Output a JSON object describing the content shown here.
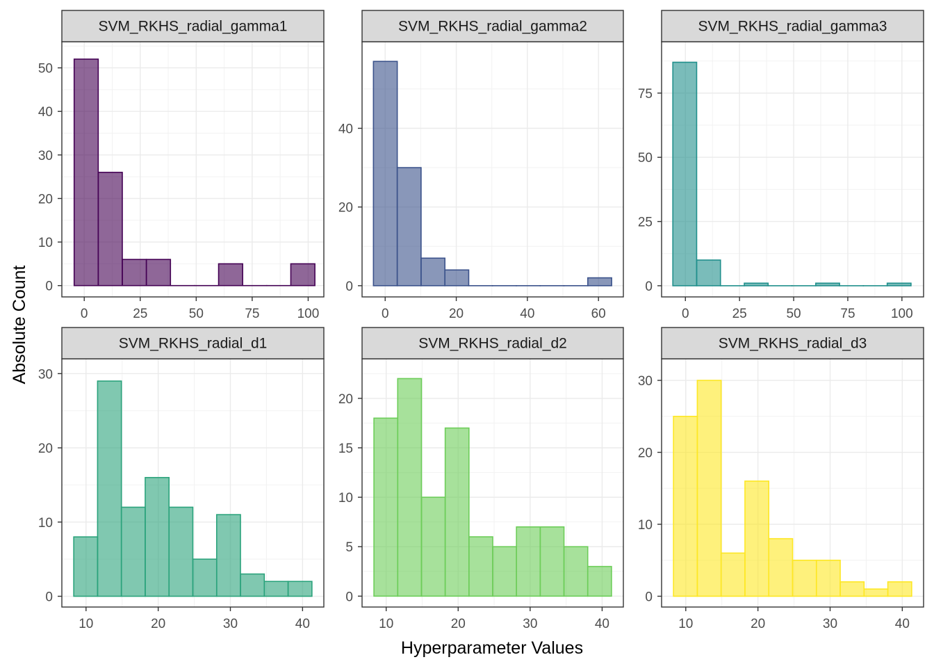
{
  "xlabel": "Hyperparameter Values",
  "ylabel": "Absolute Count",
  "chart_data": [
    {
      "type": "bar",
      "title": "SVM_RKHS_radial_gamma1",
      "color": "#440154",
      "bins": [
        {
          "x0": -4.5,
          "x1": 6.25,
          "count": 52
        },
        {
          "x0": 6.25,
          "x1": 17,
          "count": 26
        },
        {
          "x0": 17,
          "x1": 27.75,
          "count": 6
        },
        {
          "x0": 27.75,
          "x1": 38.5,
          "count": 6
        },
        {
          "x0": 38.5,
          "x1": 49.25,
          "count": 0
        },
        {
          "x0": 49.25,
          "x1": 60,
          "count": 0
        },
        {
          "x0": 60,
          "x1": 70.75,
          "count": 5
        },
        {
          "x0": 70.75,
          "x1": 81.5,
          "count": 0
        },
        {
          "x0": 81.5,
          "x1": 92.25,
          "count": 0
        },
        {
          "x0": 92.25,
          "x1": 103,
          "count": 5
        }
      ],
      "xlim": [
        -10,
        107
      ],
      "ylim": [
        -2.6,
        56
      ],
      "xticks": [
        0,
        25,
        50,
        75,
        100
      ],
      "yticks": [
        0,
        10,
        20,
        30,
        40,
        50
      ]
    },
    {
      "type": "bar",
      "title": "SVM_RKHS_radial_gamma2",
      "color": "#3B528B",
      "bins": [
        {
          "x0": -3.3,
          "x1": 3.4,
          "count": 57
        },
        {
          "x0": 3.4,
          "x1": 10.1,
          "count": 30
        },
        {
          "x0": 10.1,
          "x1": 16.8,
          "count": 7
        },
        {
          "x0": 16.8,
          "x1": 23.5,
          "count": 4
        },
        {
          "x0": 23.5,
          "x1": 30.2,
          "count": 0
        },
        {
          "x0": 30.2,
          "x1": 36.9,
          "count": 0
        },
        {
          "x0": 36.9,
          "x1": 43.6,
          "count": 0
        },
        {
          "x0": 43.6,
          "x1": 50.3,
          "count": 0
        },
        {
          "x0": 50.3,
          "x1": 57,
          "count": 0
        },
        {
          "x0": 57,
          "x1": 63.7,
          "count": 2
        }
      ],
      "xlim": [
        -6.5,
        67
      ],
      "ylim": [
        -2.85,
        62
      ],
      "xticks": [
        0,
        20,
        40,
        60
      ],
      "yticks": [
        0,
        20,
        40
      ]
    },
    {
      "type": "bar",
      "title": "SVM_RKHS_radial_gamma3",
      "color": "#21908C",
      "bins": [
        {
          "x0": -5.8,
          "x1": 5.2,
          "count": 87
        },
        {
          "x0": 5.2,
          "x1": 16.2,
          "count": 10
        },
        {
          "x0": 16.2,
          "x1": 27.2,
          "count": 0
        },
        {
          "x0": 27.2,
          "x1": 38.2,
          "count": 1
        },
        {
          "x0": 38.2,
          "x1": 49.2,
          "count": 0
        },
        {
          "x0": 49.2,
          "x1": 60.2,
          "count": 0
        },
        {
          "x0": 60.2,
          "x1": 71.2,
          "count": 1
        },
        {
          "x0": 71.2,
          "x1": 82.2,
          "count": 0
        },
        {
          "x0": 82.2,
          "x1": 93.2,
          "count": 0
        },
        {
          "x0": 93.2,
          "x1": 104.2,
          "count": 1
        }
      ],
      "xlim": [
        -11,
        110
      ],
      "ylim": [
        -4.35,
        95
      ],
      "xticks": [
        0,
        25,
        50,
        75,
        100
      ],
      "yticks": [
        0,
        25,
        50,
        75
      ]
    },
    {
      "type": "bar",
      "title": "SVM_RKHS_radial_d1",
      "color": "#2BA37C",
      "bins": [
        {
          "x0": 8.3,
          "x1": 11.6,
          "count": 8
        },
        {
          "x0": 11.6,
          "x1": 14.9,
          "count": 29
        },
        {
          "x0": 14.9,
          "x1": 18.2,
          "count": 12
        },
        {
          "x0": 18.2,
          "x1": 21.5,
          "count": 16
        },
        {
          "x0": 21.5,
          "x1": 24.8,
          "count": 12
        },
        {
          "x0": 24.8,
          "x1": 28.1,
          "count": 5
        },
        {
          "x0": 28.1,
          "x1": 31.4,
          "count": 11
        },
        {
          "x0": 31.4,
          "x1": 34.7,
          "count": 3
        },
        {
          "x0": 34.7,
          "x1": 38,
          "count": 2
        },
        {
          "x0": 38,
          "x1": 41.3,
          "count": 2
        }
      ],
      "xlim": [
        6.65,
        42.95
      ],
      "ylim": [
        -1.45,
        32
      ],
      "xticks": [
        10,
        20,
        30,
        40
      ],
      "yticks": [
        0,
        10,
        20,
        30
      ]
    },
    {
      "type": "bar",
      "title": "SVM_RKHS_radial_d2",
      "color": "#6DCD59",
      "bins": [
        {
          "x0": 8.3,
          "x1": 11.6,
          "count": 18
        },
        {
          "x0": 11.6,
          "x1": 14.9,
          "count": 22
        },
        {
          "x0": 14.9,
          "x1": 18.2,
          "count": 10
        },
        {
          "x0": 18.2,
          "x1": 21.5,
          "count": 17
        },
        {
          "x0": 21.5,
          "x1": 24.8,
          "count": 6
        },
        {
          "x0": 24.8,
          "x1": 28.1,
          "count": 5
        },
        {
          "x0": 28.1,
          "x1": 31.4,
          "count": 7
        },
        {
          "x0": 31.4,
          "x1": 34.7,
          "count": 7
        },
        {
          "x0": 34.7,
          "x1": 38,
          "count": 5
        },
        {
          "x0": 38,
          "x1": 41.3,
          "count": 3
        }
      ],
      "xlim": [
        6.65,
        42.95
      ],
      "ylim": [
        -1.1,
        24
      ],
      "xticks": [
        10,
        20,
        30,
        40
      ],
      "yticks": [
        0,
        5,
        10,
        15,
        20
      ]
    },
    {
      "type": "bar",
      "title": "SVM_RKHS_radial_d3",
      "color": "#FDE725",
      "bins": [
        {
          "x0": 8.3,
          "x1": 11.6,
          "count": 25
        },
        {
          "x0": 11.6,
          "x1": 14.9,
          "count": 30
        },
        {
          "x0": 14.9,
          "x1": 18.2,
          "count": 6
        },
        {
          "x0": 18.2,
          "x1": 21.5,
          "count": 16
        },
        {
          "x0": 21.5,
          "x1": 24.8,
          "count": 8
        },
        {
          "x0": 24.8,
          "x1": 28.1,
          "count": 5
        },
        {
          "x0": 28.1,
          "x1": 31.4,
          "count": 5
        },
        {
          "x0": 31.4,
          "x1": 34.7,
          "count": 2
        },
        {
          "x0": 34.7,
          "x1": 38,
          "count": 1
        },
        {
          "x0": 38,
          "x1": 41.3,
          "count": 2
        }
      ],
      "xlim": [
        6.65,
        42.95
      ],
      "ylim": [
        -1.5,
        33
      ],
      "xticks": [
        10,
        20,
        30,
        40
      ],
      "yticks": [
        0,
        10,
        20,
        30
      ]
    }
  ]
}
